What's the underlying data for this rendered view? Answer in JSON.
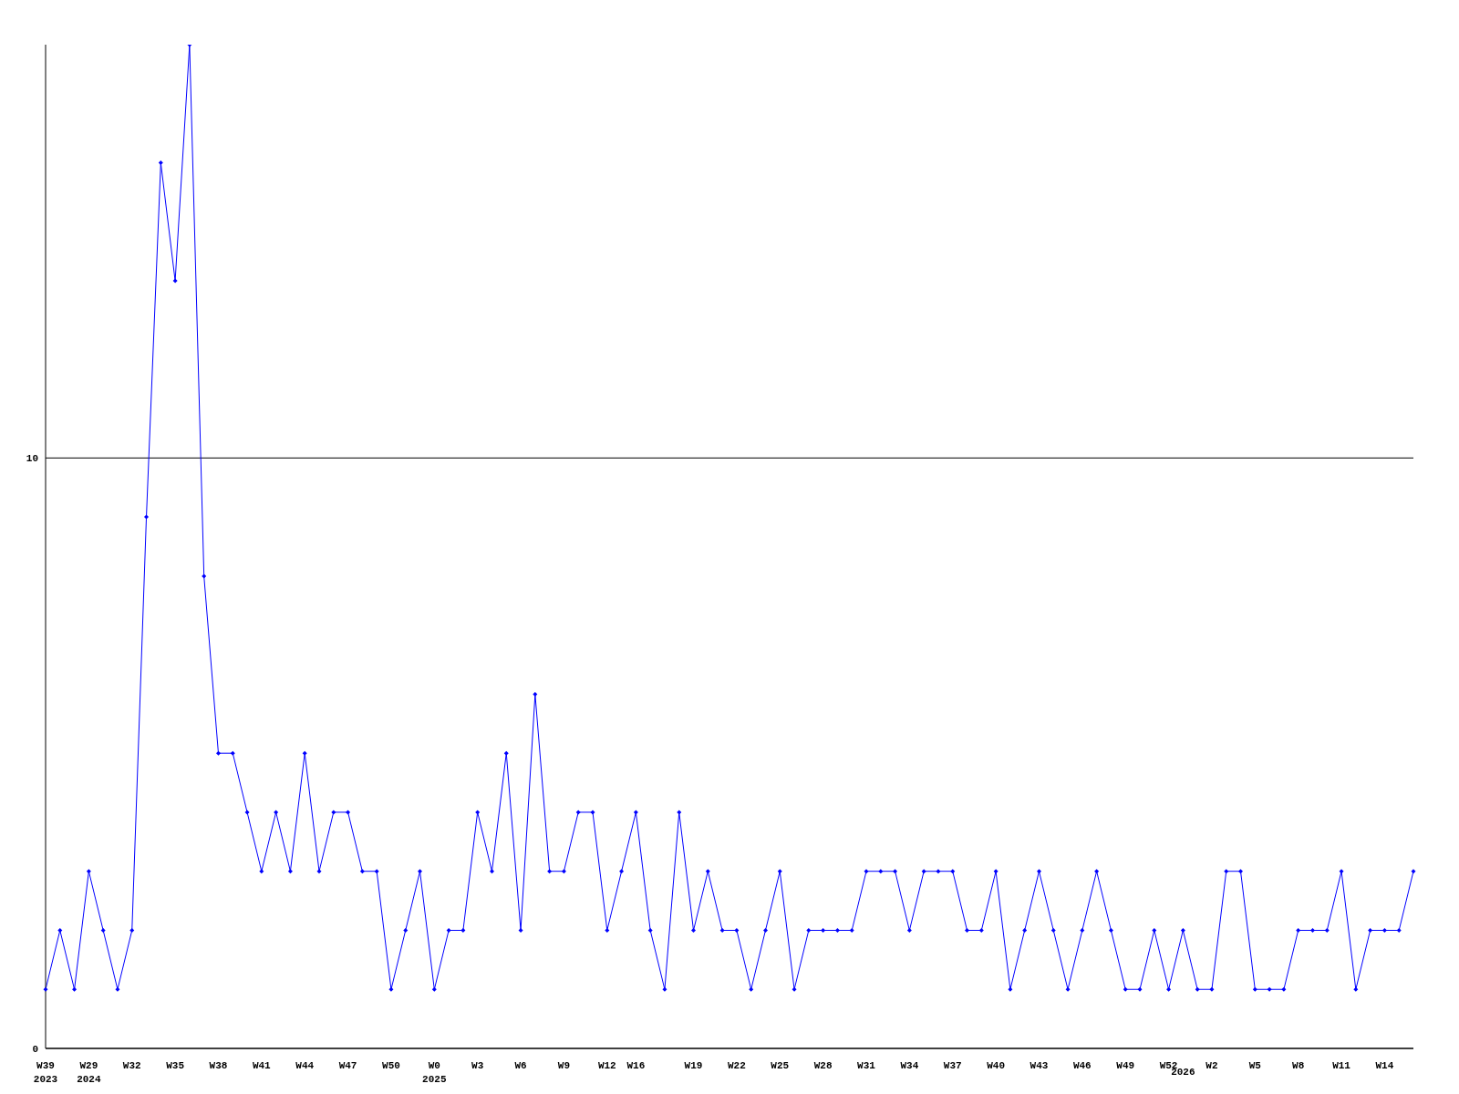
{
  "chart_data": {
    "type": "line",
    "categories": [
      "W39\n2023",
      null,
      null,
      "W29\n2024",
      null,
      null,
      "W32",
      null,
      null,
      "W35",
      null,
      null,
      "W38",
      null,
      null,
      "W41",
      null,
      null,
      "W44",
      null,
      null,
      "W47",
      null,
      null,
      "W50",
      null,
      null,
      "W0\n2025",
      null,
      null,
      "W3",
      null,
      null,
      "W6",
      null,
      null,
      "W9",
      null,
      null,
      "W12",
      null,
      "W16",
      null,
      null,
      null,
      "W19",
      null,
      null,
      "W22",
      null,
      null,
      "W25",
      null,
      null,
      "W28",
      null,
      null,
      "W31",
      null,
      null,
      "W34",
      null,
      null,
      "W37",
      null,
      null,
      "W40",
      null,
      null,
      "W43",
      null,
      null,
      "W46",
      null,
      null,
      "W49",
      null,
      null,
      "W52",
      "\n2026",
      null,
      "W2",
      null,
      null,
      "W5",
      null,
      null,
      "W8",
      null,
      null,
      "W11",
      null,
      null,
      "W14",
      null,
      null
    ],
    "series": [
      {
        "color": "#0000ff",
        "values": [
          1,
          2,
          1,
          3,
          2,
          1,
          2,
          9,
          15,
          13,
          17,
          8,
          5,
          5,
          4,
          3,
          4,
          3,
          5,
          3,
          4,
          4,
          3,
          3,
          1,
          2,
          3,
          1,
          2,
          2,
          4,
          3,
          5,
          2,
          6,
          3,
          3,
          4,
          4,
          2,
          3,
          4,
          2,
          1,
          4,
          2,
          3,
          2,
          2,
          1,
          2,
          3,
          1,
          2,
          2,
          2,
          2,
          3,
          3,
          3,
          2,
          3,
          3,
          3,
          2,
          2,
          3,
          1,
          2,
          3,
          2,
          1,
          2,
          3,
          2,
          1,
          1,
          2,
          1,
          2,
          1,
          1,
          3,
          3,
          1,
          1,
          1,
          2,
          2,
          2,
          3,
          1,
          2,
          2,
          2,
          3
        ]
      }
    ],
    "ylim": [
      0,
      17
    ],
    "yticks": [
      0,
      10
    ],
    "grid": "y",
    "marker": "diamond",
    "line_style": "solid",
    "legend": false
  }
}
